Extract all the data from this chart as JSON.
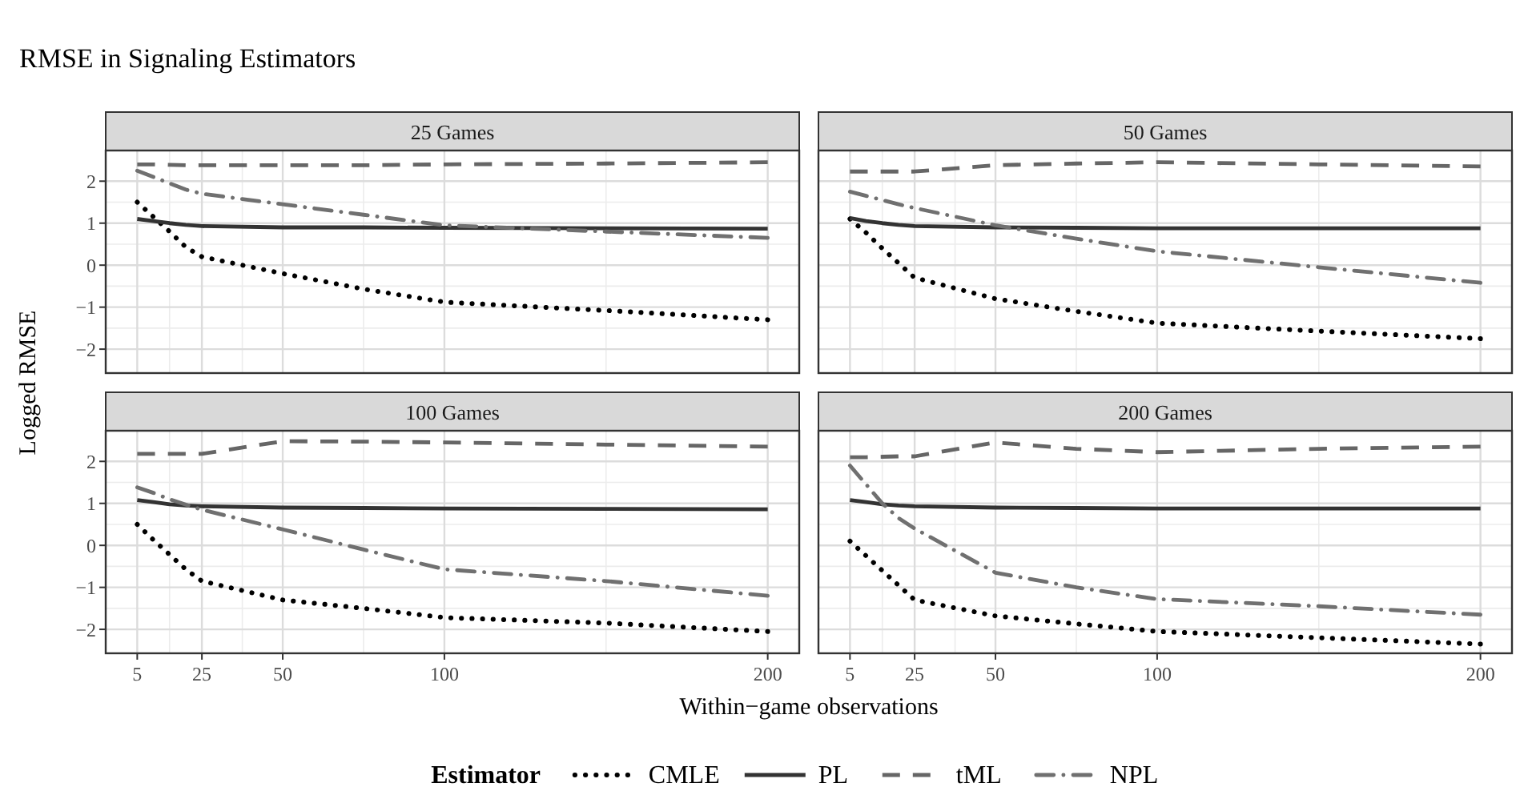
{
  "chart_data": [
    {
      "type": "line",
      "title": "RMSE in Signaling Estimators",
      "subtitle": "25 Games",
      "ylabel": "Logged RMSE",
      "legend_title": "Estimator",
      "legend": "bottom",
      "grid": true,
      "tick_labels": "y",
      "x": [
        5,
        10,
        15,
        20,
        25,
        50,
        75,
        100,
        150,
        200
      ],
      "xlim": [
        -4.75,
        209.75
      ],
      "xticks": [
        5,
        25,
        50,
        100,
        200
      ],
      "ylim": [
        -2.57,
        2.73
      ],
      "yticks": [
        -2,
        -1,
        0,
        1,
        2
      ],
      "series": [
        {
          "name": "CMLE",
          "color": "#000000",
          "line_style": "dotted",
          "values": [
            1.5,
            1.15,
            0.8,
            0.43,
            0.2,
            -0.2,
            -0.57,
            -0.88,
            -1.08,
            -1.3
          ]
        },
        {
          "name": "PL",
          "color": "#333333",
          "line_style": "solid",
          "values": [
            1.1,
            1.05,
            1.0,
            0.96,
            0.93,
            0.9,
            0.9,
            0.89,
            0.88,
            0.87
          ]
        },
        {
          "name": "tML",
          "color": "#666666",
          "line_style": "dashed",
          "values": [
            2.4,
            2.4,
            2.39,
            2.38,
            2.38,
            2.38,
            2.38,
            2.4,
            2.42,
            2.45
          ]
        },
        {
          "name": "NPL",
          "color": "#707070",
          "line_style": "dashdot",
          "values": [
            2.25,
            2.1,
            1.95,
            1.8,
            1.7,
            1.45,
            1.2,
            0.95,
            0.8,
            0.65
          ]
        }
      ]
    },
    {
      "type": "line",
      "subtitle": "50 Games",
      "grid": true,
      "tick_labels": false,
      "x": [
        5,
        10,
        15,
        20,
        25,
        50,
        75,
        100,
        150,
        200
      ],
      "xlim": [
        -4.75,
        209.75
      ],
      "xticks": [
        5,
        25,
        50,
        100,
        200
      ],
      "ylim": [
        -2.57,
        2.73
      ],
      "yticks": [
        -2,
        -1,
        0,
        1,
        2
      ],
      "series": [
        {
          "color": "#000000",
          "line_style": "dotted",
          "values": [
            1.1,
            0.77,
            0.4,
            0.05,
            -0.3,
            -0.8,
            -1.1,
            -1.38,
            -1.57,
            -1.75
          ]
        },
        {
          "color": "#333333",
          "line_style": "solid",
          "values": [
            1.12,
            1.05,
            1.0,
            0.96,
            0.93,
            0.9,
            0.89,
            0.88,
            0.88,
            0.88
          ]
        },
        {
          "color": "#666666",
          "line_style": "dashed",
          "values": [
            2.23,
            2.23,
            2.23,
            2.23,
            2.23,
            2.38,
            2.42,
            2.45,
            2.4,
            2.35
          ]
        },
        {
          "color": "#707070",
          "line_style": "dashdot",
          "values": [
            1.75,
            1.65,
            1.55,
            1.45,
            1.36,
            0.95,
            0.63,
            0.33,
            -0.05,
            -0.42
          ]
        }
      ]
    },
    {
      "type": "line",
      "subtitle": "100 Games",
      "xlabel": "Within−game observations",
      "grid": true,
      "x": [
        5,
        10,
        15,
        20,
        25,
        50,
        75,
        100,
        150,
        200
      ],
      "xlim": [
        -4.75,
        209.75
      ],
      "xticks": [
        5,
        25,
        50,
        100,
        200
      ],
      "ylim": [
        -2.57,
        2.73
      ],
      "yticks": [
        -2,
        -1,
        0,
        1,
        2
      ],
      "series": [
        {
          "color": "#000000",
          "line_style": "dotted",
          "values": [
            0.5,
            0.13,
            -0.22,
            -0.57,
            -0.85,
            -1.3,
            -1.5,
            -1.72,
            -1.85,
            -2.05
          ]
        },
        {
          "color": "#333333",
          "line_style": "solid",
          "values": [
            1.08,
            1.03,
            0.98,
            0.95,
            0.93,
            0.9,
            0.89,
            0.88,
            0.87,
            0.86
          ]
        },
        {
          "color": "#666666",
          "line_style": "dashed",
          "values": [
            2.18,
            2.18,
            2.18,
            2.18,
            2.18,
            2.48,
            2.47,
            2.45,
            2.4,
            2.35
          ]
        },
        {
          "color": "#707070",
          "line_style": "dashdot",
          "values": [
            1.38,
            1.25,
            1.1,
            0.97,
            0.85,
            0.38,
            -0.1,
            -0.57,
            -0.85,
            -1.2
          ]
        }
      ]
    },
    {
      "type": "line",
      "subtitle": "200 Games",
      "grid": true,
      "tick_labels": "x",
      "x": [
        5,
        10,
        15,
        20,
        25,
        50,
        75,
        100,
        150,
        200
      ],
      "xlim": [
        -4.75,
        209.75
      ],
      "xticks": [
        5,
        25,
        50,
        100,
        200
      ],
      "ylim": [
        -2.57,
        2.73
      ],
      "yticks": [
        -2,
        -1,
        0,
        1,
        2
      ],
      "series": [
        {
          "color": "#000000",
          "line_style": "dotted",
          "values": [
            0.1,
            -0.25,
            -0.6,
            -0.95,
            -1.3,
            -1.68,
            -1.87,
            -2.05,
            -2.2,
            -2.35
          ]
        },
        {
          "color": "#333333",
          "line_style": "solid",
          "values": [
            1.08,
            1.03,
            0.98,
            0.95,
            0.93,
            0.9,
            0.89,
            0.88,
            0.88,
            0.88
          ]
        },
        {
          "color": "#666666",
          "line_style": "dashed",
          "values": [
            2.1,
            2.1,
            2.11,
            2.12,
            2.12,
            2.45,
            2.3,
            2.22,
            2.3,
            2.35
          ]
        },
        {
          "color": "#707070",
          "line_style": "dashdot",
          "values": [
            1.9,
            1.45,
            1.0,
            0.65,
            0.4,
            -0.65,
            -1.0,
            -1.28,
            -1.45,
            -1.65
          ]
        }
      ]
    }
  ]
}
